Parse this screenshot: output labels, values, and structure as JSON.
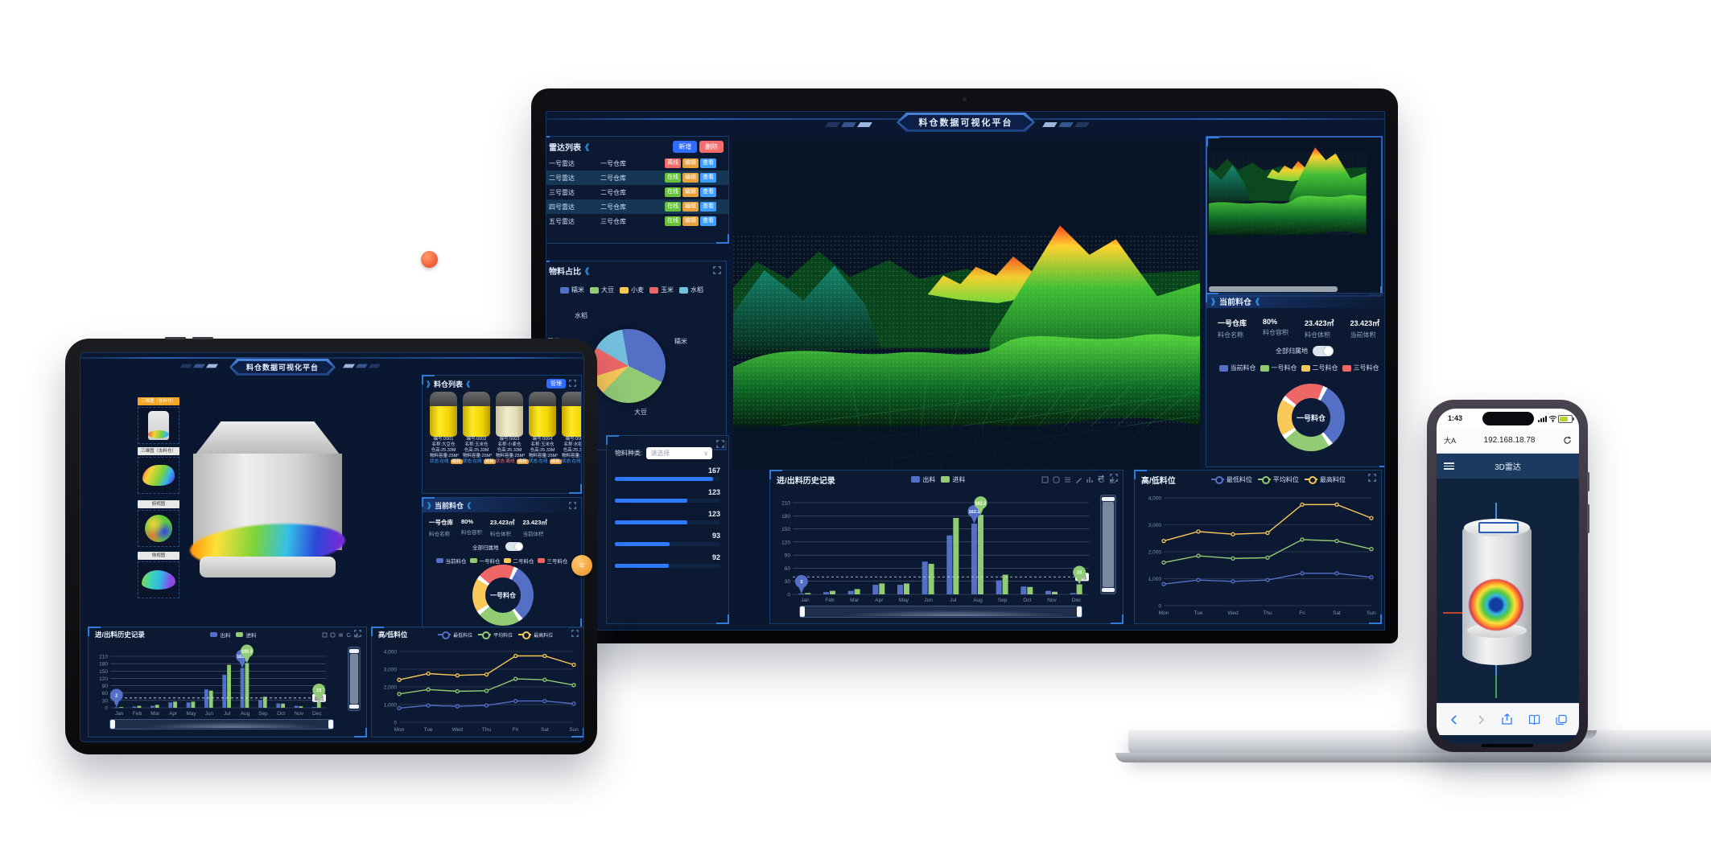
{
  "platform_title": "料仓数据可视化平台",
  "ui": {
    "arrow_l": "》",
    "arrow_r": "《",
    "chevron_down": "∨"
  },
  "colors": {
    "accent_blue": "#2f6bff",
    "panel_border": "#173e6d",
    "series_blue": "#5470c6",
    "series_green": "#91cc75",
    "series_yellow": "#fac858",
    "series_red": "#ee6666",
    "series_lightblue": "#73c0de",
    "badge_online": "#67c23a",
    "badge_offline": "#f56c6c",
    "badge_edit": "#e6a23c",
    "badge_view": "#409eff"
  },
  "laptop": {
    "radar_panel": {
      "title": "雷达列表",
      "add_label": "新增",
      "delete_label": "删除",
      "rows": [
        {
          "radar": "一号雷达",
          "silo": "一号仓库",
          "status": "离线",
          "edit": "编辑",
          "view": "查看"
        },
        {
          "radar": "二号雷达",
          "silo": "二号仓库",
          "status": "在线",
          "edit": "编辑",
          "view": "查看"
        },
        {
          "radar": "三号雷达",
          "silo": "二号仓库",
          "status": "在线",
          "edit": "编辑",
          "view": "查看"
        },
        {
          "radar": "四号雷达",
          "silo": "二号仓库",
          "status": "在线",
          "edit": "编辑",
          "view": "查看"
        },
        {
          "radar": "五号雷达",
          "silo": "三号仓库",
          "status": "在线",
          "edit": "编辑",
          "view": "查看"
        }
      ]
    },
    "material_panel": {
      "label": "物料种类:",
      "select_value": "请选择"
    }
  },
  "shared": {
    "current_panel": {
      "title": "当前料仓",
      "stats": [
        {
          "value": "一号仓库",
          "label": "料仓名称"
        },
        {
          "value": "80%",
          "label": "料仓容积"
        },
        {
          "value": "23.423㎡",
          "label": "料仓体积"
        },
        {
          "value": "23.423㎡",
          "label": "当前体积"
        }
      ],
      "toggle_label": "全部归属地",
      "legend": [
        "当前料仓",
        "一号料仓",
        "二号料仓",
        "三号料仓"
      ]
    }
  },
  "tablet": {
    "thumbnails": [
      "三维图（含料仓）",
      "三维图（去料仓）",
      "俯视图",
      "侧视图"
    ],
    "silo_list_panel": {
      "title": "料仓列表",
      "action_label": "管理",
      "silos": [
        {
          "id": "编号:0001",
          "name": "名称:大豆仓",
          "height": "仓高:25.33M",
          "capacity": "物料容量:25M³",
          "status": "状态:在线",
          "edit": "编辑"
        },
        {
          "id": "编号:0002",
          "name": "名称:玉米仓",
          "height": "仓高:25.33M",
          "capacity": "物料容量:25M³",
          "status": "状态:在线",
          "edit": "编辑"
        },
        {
          "id": "编号:0003",
          "name": "名称:小麦仓",
          "height": "仓高:25.33M",
          "capacity": "物料容量:25M³",
          "status": "状态:离线",
          "edit": "编辑"
        },
        {
          "id": "编号:0004",
          "name": "名称:玉米仓",
          "height": "仓高:25.33M",
          "capacity": "物料容量:25M³",
          "status": "状态:在线",
          "edit": "编辑"
        },
        {
          "id": "编号:0005",
          "name": "名称:水稻仓",
          "height": "仓高:25.33M",
          "capacity": "物料容量:25M³",
          "status": "状态:在线",
          "edit": "编辑"
        }
      ]
    }
  },
  "phone": {
    "status_time": "1:43",
    "reader_button": "大A",
    "url": "192.168.18.78",
    "app_title": "3D雷达"
  },
  "chart_data": [
    {
      "id": "history",
      "type": "bar",
      "title": "进/出料历史记录",
      "categories": [
        "Jan",
        "Feb",
        "Mar",
        "Apr",
        "May",
        "Jun",
        "Jul",
        "Aug",
        "Sep",
        "Oct",
        "Nov",
        "Dec"
      ],
      "series": [
        {
          "name": "出料",
          "color": "#5470c6",
          "values": [
            2,
            5,
            8,
            22,
            22,
            75,
            135,
            162.2,
            32,
            18,
            8,
            3
          ]
        },
        {
          "name": "进料",
          "color": "#91cc75",
          "values": [
            3,
            8,
            12,
            25,
            25,
            70,
            175,
            182.2,
            45,
            17,
            6,
            23
          ]
        }
      ],
      "ylim": [
        0,
        210
      ],
      "ytick": 30,
      "dash_value": 40,
      "dash_label": "最低",
      "markers": [
        {
          "series": 0,
          "index": 0,
          "label": "2"
        },
        {
          "series": 0,
          "index": 7,
          "label": "162.2"
        },
        {
          "series": 1,
          "index": 7,
          "label": "182.2"
        },
        {
          "series": 1,
          "index": 11,
          "label": "23"
        }
      ],
      "legend_position": "top",
      "grid": true
    },
    {
      "id": "levels",
      "type": "line",
      "title": "高/低料位",
      "categories": [
        "Mon",
        "Tue",
        "Wed",
        "Thu",
        "Fri",
        "Sat",
        "Sun"
      ],
      "series": [
        {
          "name": "最低料位",
          "color": "#5470c6",
          "values": [
            800,
            950,
            900,
            950,
            1200,
            1200,
            1050
          ]
        },
        {
          "name": "平均料位",
          "color": "#91cc75",
          "values": [
            1600,
            1850,
            1750,
            1780,
            2450,
            2400,
            2100
          ]
        },
        {
          "name": "最高料位",
          "color": "#fac858",
          "values": [
            2400,
            2750,
            2650,
            2700,
            3750,
            3750,
            3250
          ]
        }
      ],
      "ylim": [
        0,
        4000
      ],
      "ytick": 1000,
      "legend_position": "top",
      "grid": true
    },
    {
      "id": "pie",
      "type": "pie",
      "title": "物料占比",
      "labels": [
        "糯米",
        "大豆",
        "小麦",
        "玉米",
        "水稻"
      ],
      "values": [
        35,
        30,
        8,
        13,
        14
      ],
      "colors": [
        "#5470c6",
        "#91cc75",
        "#fac858",
        "#ee6666",
        "#73c0de"
      ],
      "legend_position": "top"
    },
    {
      "id": "donut",
      "type": "pie",
      "labels": [
        "三号料仓",
        "当前料仓",
        "一号料仓",
        "二号料仓"
      ],
      "values": [
        22,
        33,
        25,
        20
      ],
      "colors": [
        "#ee6666",
        "#5470c6",
        "#91cc75",
        "#fac858"
      ],
      "center_label": "一号料仓"
    },
    {
      "id": "materials",
      "type": "bar",
      "values": [
        167,
        123,
        123,
        93,
        92
      ],
      "max": 180
    }
  ]
}
